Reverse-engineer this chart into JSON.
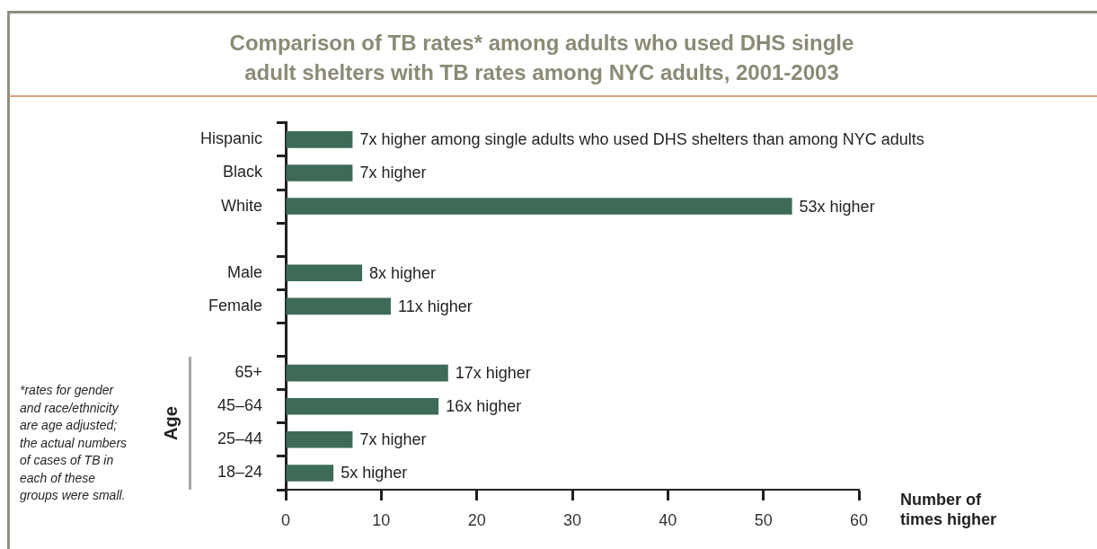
{
  "chart_data": {
    "type": "bar",
    "orientation": "horizontal",
    "title": "Comparison of TB rates* among adults who used DHS single adult shelters with TB rates among NYC adults, 2001-2003",
    "xlabel": "Number of times higher",
    "categories": [
      "Hispanic",
      "Black",
      "White",
      null,
      "Male",
      "Female",
      null,
      "65+",
      "45–64",
      "25–44",
      "18–24"
    ],
    "values": [
      7,
      7,
      53,
      null,
      8,
      11,
      null,
      17,
      16,
      7,
      5
    ],
    "color": "#3d6b57",
    "value_labels": [
      "7x higher among single adults who used DHS shelters than among NYC adults",
      "7x higher",
      "53x higher",
      null,
      "8x higher",
      "11x higher",
      null,
      "17x higher",
      "16x higher",
      "7x higher",
      "5x higher"
    ],
    "xlim": [
      0,
      60
    ],
    "xticks": [
      0,
      10,
      20,
      30,
      40,
      50,
      60
    ],
    "annotations": [
      "*rates for gender and race/ethnicity are age adjusted; the actual numbers of cases of TB in each of these groups were small.",
      "Age"
    ]
  }
}
